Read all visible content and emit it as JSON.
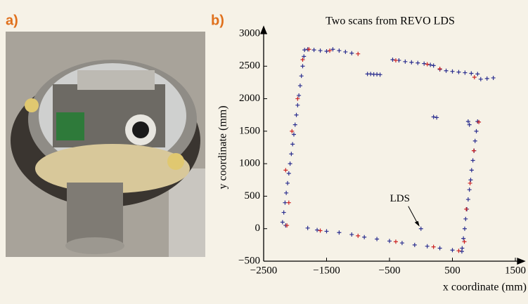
{
  "panel_a": {
    "label": "a)"
  },
  "chart_data": {
    "type": "scatter",
    "panel_label": "b)",
    "title": "Two scans from REVO LDS",
    "xlabel": "x coordinate (mm)",
    "ylabel": "y coordinate (mm)",
    "xlim": [
      -2500,
      1500
    ],
    "xticks": [
      {
        "value": -2500,
        "label": "−2500"
      },
      {
        "value": -1500,
        "label": "−1500"
      },
      {
        "value": -500,
        "label": "−500"
      },
      500,
      1500
    ],
    "ylim": [
      -500,
      3000
    ],
    "yticks": [
      {
        "value": -500,
        "label": "−500"
      },
      0,
      500,
      1000,
      1500,
      2000,
      2500,
      3000
    ],
    "annotation": {
      "text": "LDS",
      "x": 0,
      "y": 0
    },
    "series": [
      {
        "color": "#2b2f8f",
        "x": [
          -2200,
          -2180,
          -2160,
          -2141,
          -2120,
          -2100,
          -2080,
          -2060,
          -2040,
          -2020,
          -2000,
          -1980,
          -1960,
          -1940,
          -1920,
          -1900,
          -1880,
          -1860,
          -1850,
          -1800,
          -1700,
          -1600,
          -1500,
          -1400,
          -1300,
          -1200,
          -1100,
          -850,
          -800,
          -750,
          -700,
          -650,
          -450,
          -350,
          -250,
          -150,
          -50,
          50,
          150,
          200,
          300,
          400,
          500,
          600,
          700,
          800,
          900,
          950,
          1050,
          1150,
          200,
          250,
          900,
          880,
          860,
          845,
          825,
          805,
          790,
          770,
          750,
          730,
          710,
          695,
          675,
          655,
          750,
          770,
          -2150,
          -1800,
          -1650,
          -1500,
          -1300,
          -1100,
          -900,
          -700,
          -500,
          -300,
          -100,
          100,
          300,
          500,
          650,
          0
        ],
        "y": [
          100,
          250,
          400,
          550,
          700,
          850,
          1000,
          1150,
          1300,
          1450,
          1600,
          1750,
          1900,
          2050,
          2200,
          2350,
          2500,
          2650,
          2750,
          2760,
          2750,
          2740,
          2730,
          2760,
          2740,
          2720,
          2700,
          2380,
          2380,
          2375,
          2375,
          2370,
          2600,
          2590,
          2570,
          2560,
          2550,
          2540,
          2520,
          2510,
          2450,
          2430,
          2420,
          2410,
          2400,
          2390,
          2380,
          2300,
          2310,
          2320,
          1720,
          1710,
          1650,
          1500,
          1350,
          1200,
          1050,
          900,
          750,
          600,
          450,
          300,
          150,
          0,
          -150,
          -300,
          1650,
          1600,
          50,
          10,
          -20,
          -40,
          -60,
          -90,
          -130,
          -160,
          -190,
          -220,
          -250,
          -270,
          -300,
          -330,
          -350,
          0
        ]
      },
      {
        "color": "#cc2222",
        "x": [
          -2130,
          -2150,
          -2050,
          -1960,
          -1880,
          -1780,
          -1450,
          -1000,
          -400,
          100,
          300,
          850,
          920,
          840,
          780,
          720,
          690,
          -1600,
          -1000,
          -400,
          200,
          600,
          -2100
        ],
        "y": [
          50,
          900,
          1500,
          2000,
          2600,
          2760,
          2740,
          2690,
          2590,
          2530,
          2460,
          2330,
          1640,
          1200,
          700,
          300,
          -200,
          -30,
          -110,
          -200,
          -280,
          -340,
          400
        ]
      }
    ]
  }
}
